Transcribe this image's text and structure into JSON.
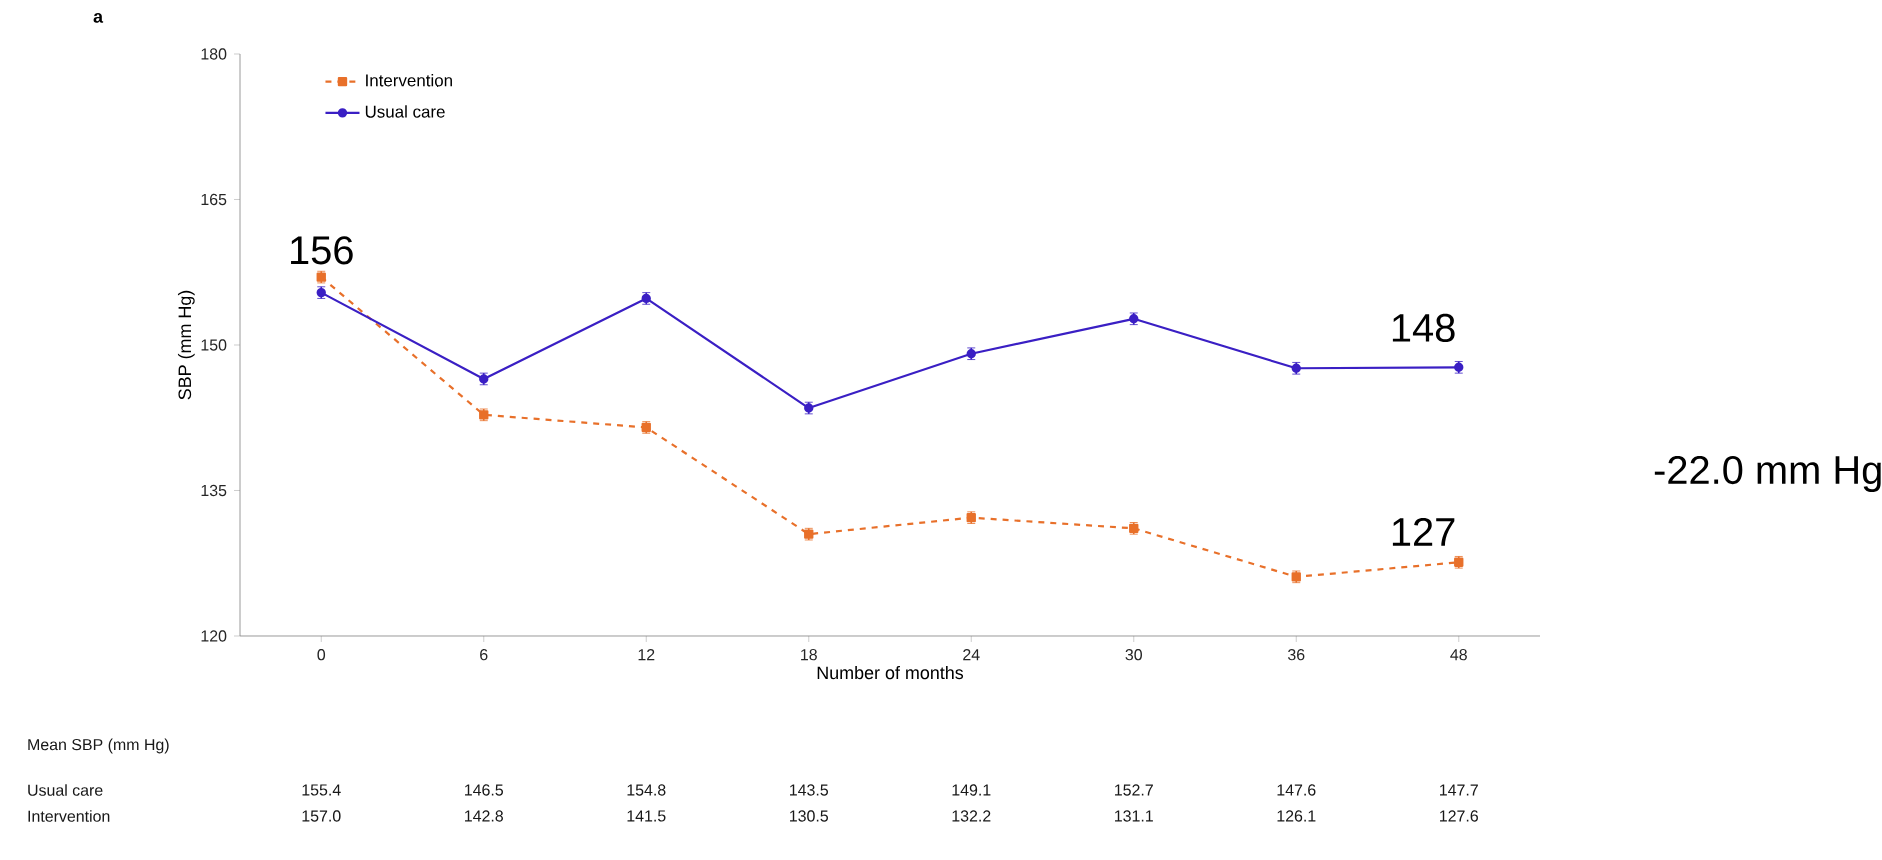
{
  "chart_data": {
    "type": "line",
    "ylabel": "SBP (mm Hg)",
    "xlabel": "Number of months",
    "categories": [
      "0",
      "6",
      "12",
      "18",
      "24",
      "30",
      "36",
      "48"
    ],
    "ylim": [
      120,
      180
    ],
    "yticks": [
      120,
      135,
      150,
      165,
      180
    ],
    "series": [
      {
        "name": "Intervention",
        "color": "#e8702a",
        "line_style": "dashed",
        "marker": "square",
        "values": [
          157.0,
          142.8,
          141.5,
          130.5,
          132.2,
          131.1,
          126.1,
          127.6
        ],
        "value_labels": [
          "157.0",
          "142.8",
          "141.5",
          "130.5",
          "132.2",
          "131.1",
          "126.1",
          "127.6"
        ],
        "errors": [
          0.6,
          0.6,
          0.6,
          0.6,
          0.6,
          0.6,
          0.6,
          0.6
        ]
      },
      {
        "name": "Usual care",
        "color": "#3a1fc4",
        "line_style": "solid",
        "marker": "circle",
        "values": [
          155.4,
          146.5,
          154.8,
          143.5,
          149.1,
          152.7,
          147.6,
          147.7
        ],
        "value_labels": [
          "155.4",
          "146.5",
          "154.8",
          "143.5",
          "149.1",
          "152.7",
          "147.6",
          "147.7"
        ],
        "errors": [
          0.6,
          0.6,
          0.6,
          0.6,
          0.6,
          0.6,
          0.6,
          0.6
        ]
      }
    ],
    "legend": "top left",
    "grid": false,
    "annotations": [
      "a",
      {
        "text": "156",
        "x": "0",
        "y": 156
      },
      {
        "text": "148",
        "x": "48",
        "y": 148
      },
      {
        "text": "127",
        "x": "48",
        "y": 127
      },
      "-22.0 mm Hg",
      "Mean SBP (mm Hg)"
    ]
  }
}
